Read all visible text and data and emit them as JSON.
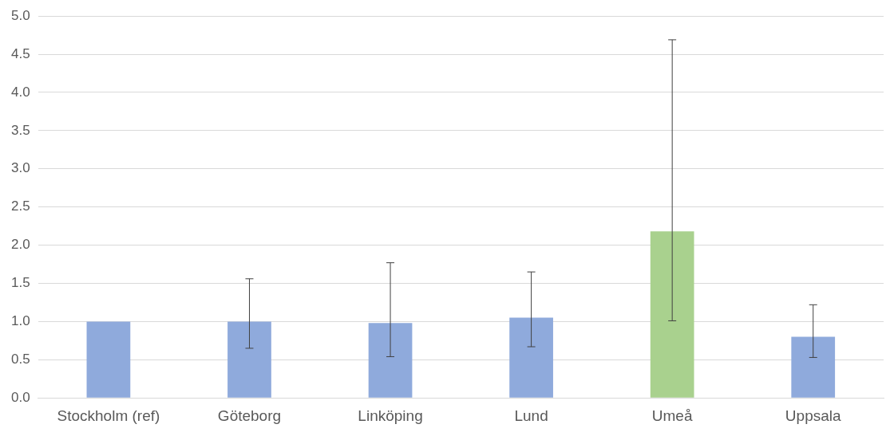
{
  "chart_data": {
    "type": "bar",
    "categories": [
      "Stockholm (ref)",
      "Göteborg",
      "Linköping",
      "Lund",
      "Umeå",
      "Uppsala"
    ],
    "values": [
      1.0,
      1.0,
      0.98,
      1.05,
      2.18,
      0.8
    ],
    "colors": [
      "#8faadc",
      "#8faadc",
      "#8faadc",
      "#8faadc",
      "#a9d18e",
      "#8faadc"
    ],
    "errors": [
      null,
      [
        0.65,
        1.56
      ],
      [
        0.54,
        1.77
      ],
      [
        0.67,
        1.65
      ],
      [
        1.01,
        4.69
      ],
      [
        0.53,
        1.22
      ]
    ],
    "ylim": [
      0,
      5
    ],
    "yticks": [
      {
        "value": 0,
        "label": "0.0"
      },
      {
        "value": 0.5,
        "label": "0.5"
      },
      {
        "value": 1,
        "label": "1.0"
      },
      {
        "value": 1.5,
        "label": "1.5"
      },
      {
        "value": 2,
        "label": "2.0"
      },
      {
        "value": 2.5,
        "label": "2.5"
      },
      {
        "value": 3,
        "label": "3.0"
      },
      {
        "value": 3.5,
        "label": "3.5"
      },
      {
        "value": 4,
        "label": "4.0"
      },
      {
        "value": 4.5,
        "label": "4.5"
      },
      {
        "value": 5,
        "label": "5.0"
      }
    ],
    "grid": "y"
  }
}
